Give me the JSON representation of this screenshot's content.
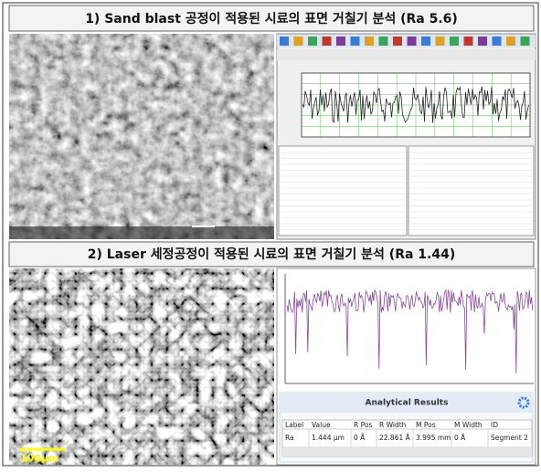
{
  "sections": [
    {
      "title": "1) Sand blast 공정이 적용된 시료의 표면 거칠기 분석 (Ra 5.6)"
    },
    {
      "title": "2) Laser 세정공정이 적용된 시료의 표면 거칠기 분석 (Ra 1.44)",
      "scale_bar": "100µm",
      "results": {
        "title": "Analytical Results",
        "columns": [
          "Label",
          "Value",
          "R Pos",
          "R Width",
          "M Pos",
          "M Width",
          "ID"
        ],
        "rows": [
          [
            "Ra",
            "1.444 µm",
            "0 Å",
            "22.861 Å",
            "3.995 mm",
            "0 Å",
            "Segment 2"
          ]
        ]
      }
    }
  ]
}
